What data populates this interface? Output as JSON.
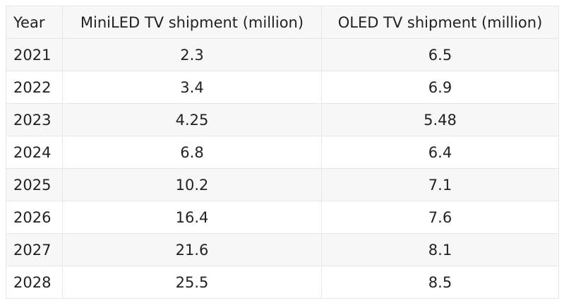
{
  "table": {
    "header": [
      "Year",
      "MiniLED TV shipment (million)",
      "OLED TV shipment (million)"
    ],
    "rows": [
      [
        "2021",
        "2.3",
        "6.5"
      ],
      [
        "2022",
        "3.4",
        "6.9"
      ],
      [
        "2023",
        "4.25",
        "5.48"
      ],
      [
        "2024",
        "6.8",
        "6.4"
      ],
      [
        "2025",
        "10.2",
        "7.1"
      ],
      [
        "2026",
        "16.4",
        "7.6"
      ],
      [
        "2027",
        "21.6",
        "8.1"
      ],
      [
        "2028",
        "25.5",
        "8.5"
      ]
    ]
  }
}
